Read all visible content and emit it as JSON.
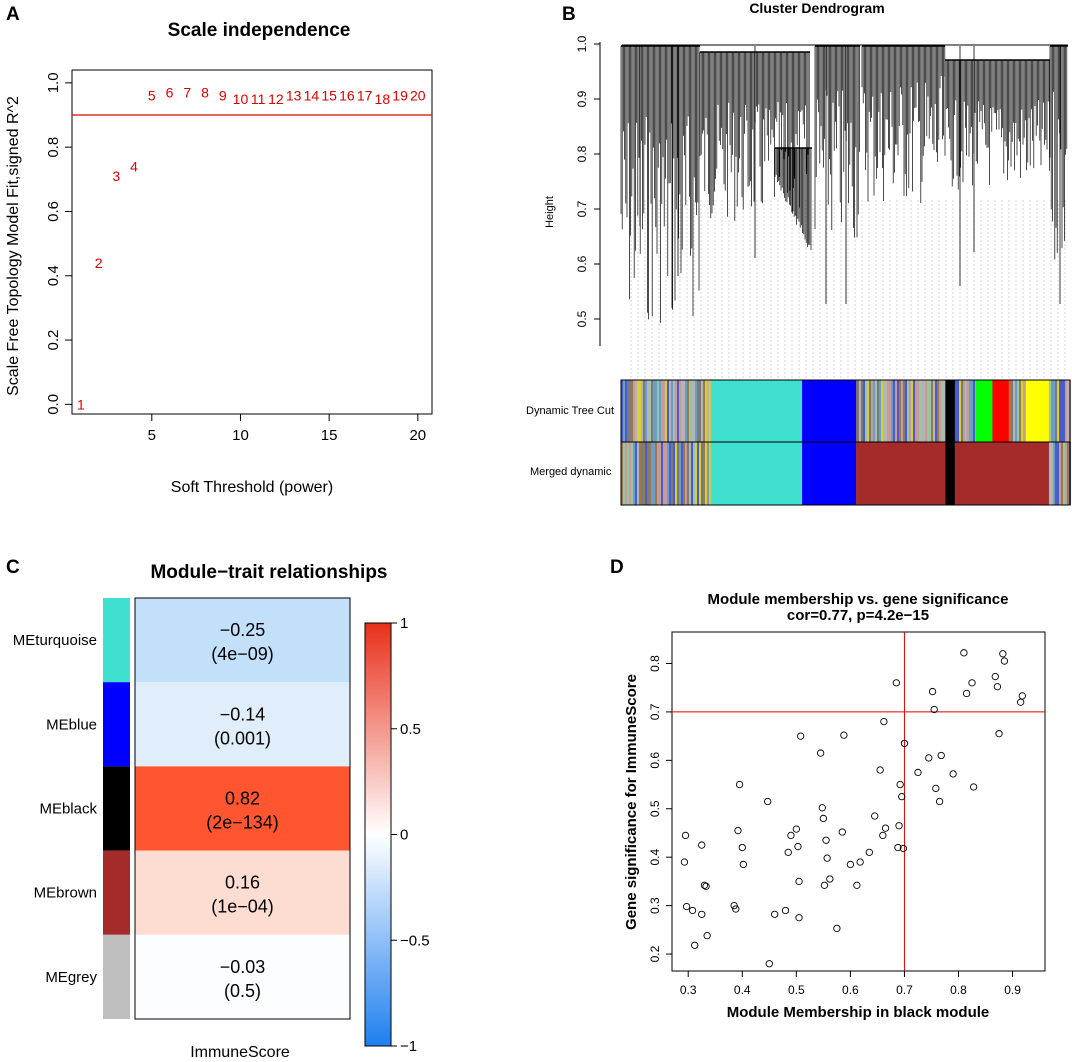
{
  "panels": {
    "a": "A",
    "b": "B",
    "c": "C",
    "d": "D"
  },
  "chart_data": [
    {
      "type": "scatter",
      "panel": "A",
      "title": "Scale independence",
      "xlabel": "Soft Threshold (power)",
      "ylabel": "Scale Free Topology Model Fit,signed R^2",
      "xlim": [
        0.5,
        20.8
      ],
      "ylim": [
        -0.03,
        1.04
      ],
      "xticks": [
        5,
        10,
        15,
        20
      ],
      "yticks": [
        0.0,
        0.2,
        0.4,
        0.6,
        0.8,
        1.0
      ],
      "xtick_labels": [
        "5",
        "10",
        "15",
        "20"
      ],
      "ytick_labels": [
        "0.0",
        "0.2",
        "0.4",
        "0.6",
        "0.8",
        "1.0"
      ],
      "hline": 0.9,
      "points": [
        {
          "x": 1,
          "y": 0.0,
          "label": "1"
        },
        {
          "x": 2,
          "y": 0.44,
          "label": "2"
        },
        {
          "x": 3,
          "y": 0.71,
          "label": "3"
        },
        {
          "x": 4,
          "y": 0.74,
          "label": "4"
        },
        {
          "x": 5,
          "y": 0.96,
          "label": "5"
        },
        {
          "x": 6,
          "y": 0.97,
          "label": "6"
        },
        {
          "x": 7,
          "y": 0.97,
          "label": "7"
        },
        {
          "x": 8,
          "y": 0.97,
          "label": "8"
        },
        {
          "x": 9,
          "y": 0.96,
          "label": "9"
        },
        {
          "x": 10,
          "y": 0.95,
          "label": "10"
        },
        {
          "x": 11,
          "y": 0.95,
          "label": "11"
        },
        {
          "x": 12,
          "y": 0.95,
          "label": "12"
        },
        {
          "x": 13,
          "y": 0.96,
          "label": "13"
        },
        {
          "x": 14,
          "y": 0.96,
          "label": "14"
        },
        {
          "x": 15,
          "y": 0.96,
          "label": "15"
        },
        {
          "x": 16,
          "y": 0.96,
          "label": "16"
        },
        {
          "x": 17,
          "y": 0.96,
          "label": "17"
        },
        {
          "x": 18,
          "y": 0.95,
          "label": "18"
        },
        {
          "x": 19,
          "y": 0.96,
          "label": "19"
        },
        {
          "x": 20,
          "y": 0.96,
          "label": "20"
        }
      ]
    },
    {
      "type": "dendrogram",
      "panel": "B",
      "title": "Cluster Dendrogram",
      "ylabel": "Height",
      "ylim": [
        0.44,
        1.0
      ],
      "yticks": [
        0.5,
        0.6,
        0.7,
        0.8,
        0.9,
        1.0
      ],
      "ytick_labels": [
        "0.5",
        "0.6",
        "0.7",
        "0.8",
        "0.9",
        "1.0"
      ],
      "color_rows": [
        {
          "label": "Dynamic Tree Cut",
          "segments": [
            {
              "color": "#40e0d0",
              "from": 0.236,
              "to": 0.43
            },
            {
              "color": "#0000ff",
              "from": 0.43,
              "to": 0.545
            },
            {
              "color": "#000000",
              "from": 0.735,
              "to": 0.755
            },
            {
              "color": "#00ff00",
              "from": 0.8,
              "to": 0.835
            },
            {
              "color": "#ff0000",
              "from": 0.835,
              "to": 0.87
            },
            {
              "color": "#ffff00",
              "from": 0.905,
              "to": 0.955
            }
          ]
        },
        {
          "label": "Merged dynamic",
          "segments": [
            {
              "color": "#40e0d0",
              "from": 0.236,
              "to": 0.43
            },
            {
              "color": "#0000ff",
              "from": 0.43,
              "to": 0.545
            },
            {
              "color": "#a52a2a",
              "from": 0.545,
              "to": 0.735
            },
            {
              "color": "#000000",
              "from": 0.735,
              "to": 0.755
            },
            {
              "color": "#a52a2a",
              "from": 0.755,
              "to": 0.955
            }
          ]
        }
      ]
    },
    {
      "type": "heatmap",
      "panel": "C",
      "title": "Module−trait relationships",
      "xlabel": "ImmuneScore",
      "rows": [
        {
          "module": "MEturquoise",
          "swatch": "#40e0d0",
          "value": "−0.25",
          "p": "(4e−09)",
          "fill": "#c3e0fb",
          "num": -0.25
        },
        {
          "module": "MEblue",
          "swatch": "#0000ff",
          "value": "−0.14",
          "p": "(0.001)",
          "fill": "#e0eefb",
          "num": -0.14
        },
        {
          "module": "MEblack",
          "swatch": "#000000",
          "value": "0.82",
          "p": "(2e−134)",
          "fill": "#ff5530",
          "num": 0.82
        },
        {
          "module": "MEbrown",
          "swatch": "#a52a2a",
          "value": "0.16",
          "p": "(1e−04)",
          "fill": "#fddcd2",
          "num": 0.16
        },
        {
          "module": "MEgrey",
          "swatch": "#bebebe",
          "value": "−0.03",
          "p": "(0.5)",
          "fill": "#fbfdff",
          "num": -0.03
        }
      ],
      "colorbar": {
        "range": [
          -1,
          1
        ],
        "ticks": [
          1,
          0.5,
          0,
          -0.5,
          -1
        ],
        "tick_labels": [
          "1",
          "0.5",
          "0",
          "−0.5",
          "−1"
        ],
        "low_color": "#1e7ff0",
        "mid_color": "#ffffff",
        "high_color": "#e8301a"
      }
    },
    {
      "type": "scatter",
      "panel": "D",
      "title": "Module membership vs. gene significance",
      "subtitle": "cor=0.77, p=4.2e−15",
      "xlabel": "Module Membership in black module",
      "ylabel": "Gene significance for  ImmuneScore",
      "xlim": [
        0.27,
        0.96
      ],
      "ylim": [
        0.165,
        0.865
      ],
      "xticks": [
        0.3,
        0.4,
        0.5,
        0.6,
        0.7,
        0.8,
        0.9
      ],
      "yticks": [
        0.2,
        0.3,
        0.4,
        0.5,
        0.6,
        0.7,
        0.8
      ],
      "xtick_labels": [
        "0.3",
        "0.4",
        "0.5",
        "0.6",
        "0.7",
        "0.8",
        "0.9"
      ],
      "ytick_labels": [
        "0.2",
        "0.3",
        "0.4",
        "0.5",
        "0.6",
        "0.7",
        "0.8"
      ],
      "vline": 0.7,
      "hline": 0.7,
      "points": [
        [
          0.295,
          0.445
        ],
        [
          0.293,
          0.39
        ],
        [
          0.297,
          0.298
        ],
        [
          0.308,
          0.29
        ],
        [
          0.312,
          0.218
        ],
        [
          0.325,
          0.425
        ],
        [
          0.325,
          0.282
        ],
        [
          0.33,
          0.342
        ],
        [
          0.333,
          0.34
        ],
        [
          0.335,
          0.238
        ],
        [
          0.385,
          0.3
        ],
        [
          0.388,
          0.293
        ],
        [
          0.392,
          0.455
        ],
        [
          0.395,
          0.55
        ],
        [
          0.4,
          0.42
        ],
        [
          0.402,
          0.385
        ],
        [
          0.447,
          0.515
        ],
        [
          0.45,
          0.18
        ],
        [
          0.46,
          0.282
        ],
        [
          0.48,
          0.29
        ],
        [
          0.485,
          0.41
        ],
        [
          0.49,
          0.445
        ],
        [
          0.5,
          0.458
        ],
        [
          0.503,
          0.422
        ],
        [
          0.505,
          0.35
        ],
        [
          0.505,
          0.275
        ],
        [
          0.508,
          0.65
        ],
        [
          0.545,
          0.615
        ],
        [
          0.548,
          0.502
        ],
        [
          0.55,
          0.48
        ],
        [
          0.552,
          0.342
        ],
        [
          0.555,
          0.435
        ],
        [
          0.557,
          0.398
        ],
        [
          0.562,
          0.355
        ],
        [
          0.575,
          0.253
        ],
        [
          0.585,
          0.452
        ],
        [
          0.588,
          0.652
        ],
        [
          0.6,
          0.385
        ],
        [
          0.612,
          0.342
        ],
        [
          0.618,
          0.39
        ],
        [
          0.635,
          0.41
        ],
        [
          0.645,
          0.485
        ],
        [
          0.655,
          0.58
        ],
        [
          0.66,
          0.445
        ],
        [
          0.662,
          0.68
        ],
        [
          0.665,
          0.46
        ],
        [
          0.685,
          0.76
        ],
        [
          0.688,
          0.42
        ],
        [
          0.69,
          0.465
        ],
        [
          0.692,
          0.55
        ],
        [
          0.695,
          0.525
        ],
        [
          0.698,
          0.418
        ],
        [
          0.7,
          0.635
        ],
        [
          0.725,
          0.575
        ],
        [
          0.745,
          0.605
        ],
        [
          0.752,
          0.742
        ],
        [
          0.755,
          0.705
        ],
        [
          0.758,
          0.542
        ],
        [
          0.765,
          0.515
        ],
        [
          0.768,
          0.61
        ],
        [
          0.79,
          0.572
        ],
        [
          0.81,
          0.822
        ],
        [
          0.815,
          0.738
        ],
        [
          0.825,
          0.76
        ],
        [
          0.828,
          0.545
        ],
        [
          0.868,
          0.773
        ],
        [
          0.872,
          0.752
        ],
        [
          0.875,
          0.655
        ],
        [
          0.882,
          0.82
        ],
        [
          0.885,
          0.805
        ],
        [
          0.915,
          0.72
        ],
        [
          0.918,
          0.733
        ]
      ]
    }
  ]
}
